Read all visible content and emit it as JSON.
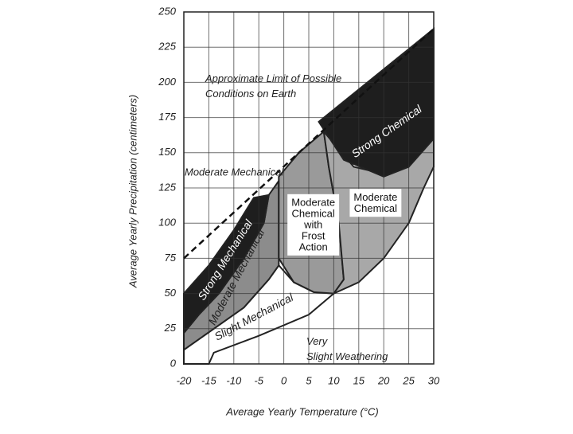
{
  "chart_data": {
    "type": "regions",
    "xlabel": "Average Yearly Temperature (°C)",
    "ylabel": "Average Yearly Precipitation (centimeters)",
    "xlim": [
      -20,
      30
    ],
    "xticks": [
      -20,
      -15,
      -10,
      -5,
      0,
      5,
      10,
      15,
      20,
      25,
      30
    ],
    "ylim": [
      0,
      250
    ],
    "yticks": [
      0,
      25,
      50,
      75,
      100,
      125,
      150,
      175,
      200,
      225,
      250
    ],
    "grid": true,
    "limit_line": {
      "name": "Approximate Limit of Possible Conditions on Earth",
      "x": [
        -20,
        30
      ],
      "y": [
        75,
        238
      ]
    },
    "regions": [
      {
        "name": "Slight Mechanical",
        "color": "#ffffff",
        "x": [
          -15,
          -14,
          -5,
          5,
          10,
          6,
          2,
          -1,
          -3,
          -8,
          -14,
          -20,
          -20
        ],
        "y": [
          0,
          8,
          20,
          35,
          50,
          51,
          58,
          70,
          60,
          40,
          25,
          10,
          0
        ]
      },
      {
        "name": "Moderate Mechanical",
        "color": "#8c8c8c",
        "x": [
          -20,
          -20,
          -17,
          -13,
          -8,
          -4,
          -3,
          -1,
          -1,
          -3,
          -8,
          -14
        ],
        "y": [
          10,
          22,
          35,
          50,
          75,
          100,
          120,
          130,
          70,
          60,
          40,
          25
        ]
      },
      {
        "name": "Moderate Chemical with Frost Action",
        "color": "#9a9a9a",
        "x": [
          -1,
          -1,
          2,
          6,
          10,
          12,
          11,
          9,
          8,
          3
        ],
        "y": [
          133,
          75,
          58,
          51,
          50,
          60,
          100,
          140,
          165,
          150
        ]
      },
      {
        "name": "Moderate Chemical",
        "color": "#a8a8a8",
        "x": [
          8,
          9,
          11,
          12,
          10,
          15,
          20,
          25,
          28,
          30,
          30,
          25,
          20,
          14
        ],
        "y": [
          165,
          140,
          100,
          60,
          50,
          58,
          75,
          100,
          125,
          140,
          160,
          145,
          135,
          140
        ]
      },
      {
        "name": "Strong Mechanical",
        "color": "#1e1e1e",
        "x": [
          -20,
          -20,
          -15,
          -10,
          -6,
          -3,
          -4,
          -8,
          -13,
          -17
        ],
        "y": [
          22,
          50,
          70,
          95,
          118,
          120,
          100,
          75,
          50,
          35
        ]
      },
      {
        "name": "Strong Chemical",
        "color": "#1e1e1e",
        "x": [
          7,
          30,
          30,
          25,
          20,
          12
        ],
        "y": [
          172,
          238,
          160,
          140,
          133,
          145
        ]
      }
    ],
    "annotations": [
      "Moderate Mechanical",
      "Very Slight Weathering"
    ]
  }
}
